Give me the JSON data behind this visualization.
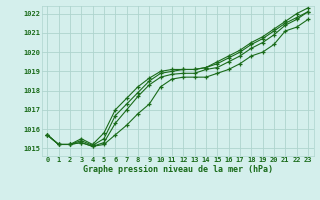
{
  "hours": [
    0,
    1,
    2,
    3,
    4,
    5,
    6,
    7,
    8,
    9,
    10,
    11,
    12,
    13,
    14,
    15,
    16,
    17,
    18,
    19,
    20,
    21,
    22,
    23
  ],
  "line1": [
    1015.7,
    1015.2,
    1015.2,
    1015.3,
    1015.1,
    1015.2,
    1015.7,
    1016.2,
    1016.8,
    1017.3,
    1018.2,
    1018.6,
    1018.7,
    1018.7,
    1018.7,
    1018.9,
    1019.1,
    1019.4,
    1019.8,
    1020.0,
    1020.4,
    1021.1,
    1021.3,
    1021.7
  ],
  "line2": [
    1015.7,
    1015.2,
    1015.2,
    1015.3,
    1015.1,
    1015.3,
    1016.3,
    1017.0,
    1017.7,
    1018.3,
    1018.7,
    1018.85,
    1018.9,
    1018.9,
    1019.1,
    1019.2,
    1019.5,
    1019.8,
    1020.2,
    1020.5,
    1020.9,
    1021.4,
    1021.7,
    1022.1
  ],
  "line3": [
    1015.7,
    1015.2,
    1015.2,
    1015.4,
    1015.15,
    1015.5,
    1016.7,
    1017.3,
    1017.9,
    1018.5,
    1018.9,
    1019.0,
    1019.1,
    1019.1,
    1019.2,
    1019.4,
    1019.7,
    1020.0,
    1020.4,
    1020.7,
    1021.1,
    1021.5,
    1021.8,
    1022.1
  ],
  "line4": [
    1015.7,
    1015.2,
    1015.2,
    1015.5,
    1015.2,
    1015.8,
    1017.0,
    1017.6,
    1018.2,
    1018.65,
    1019.0,
    1019.1,
    1019.1,
    1019.1,
    1019.2,
    1019.5,
    1019.8,
    1020.1,
    1020.5,
    1020.8,
    1021.2,
    1021.6,
    1022.0,
    1022.3
  ],
  "line_color": "#1a6b1a",
  "bg_color": "#d4efec",
  "grid_color": "#aed4ce",
  "xlabel": "Graphe pression niveau de la mer (hPa)",
  "ylim_min": 1014.6,
  "ylim_max": 1022.4,
  "xlim_min": -0.5,
  "xlim_max": 23.5,
  "yticks": [
    1015,
    1016,
    1017,
    1018,
    1019,
    1020,
    1021,
    1022
  ],
  "fig_width": 3.2,
  "fig_height": 2.0,
  "dpi": 100
}
